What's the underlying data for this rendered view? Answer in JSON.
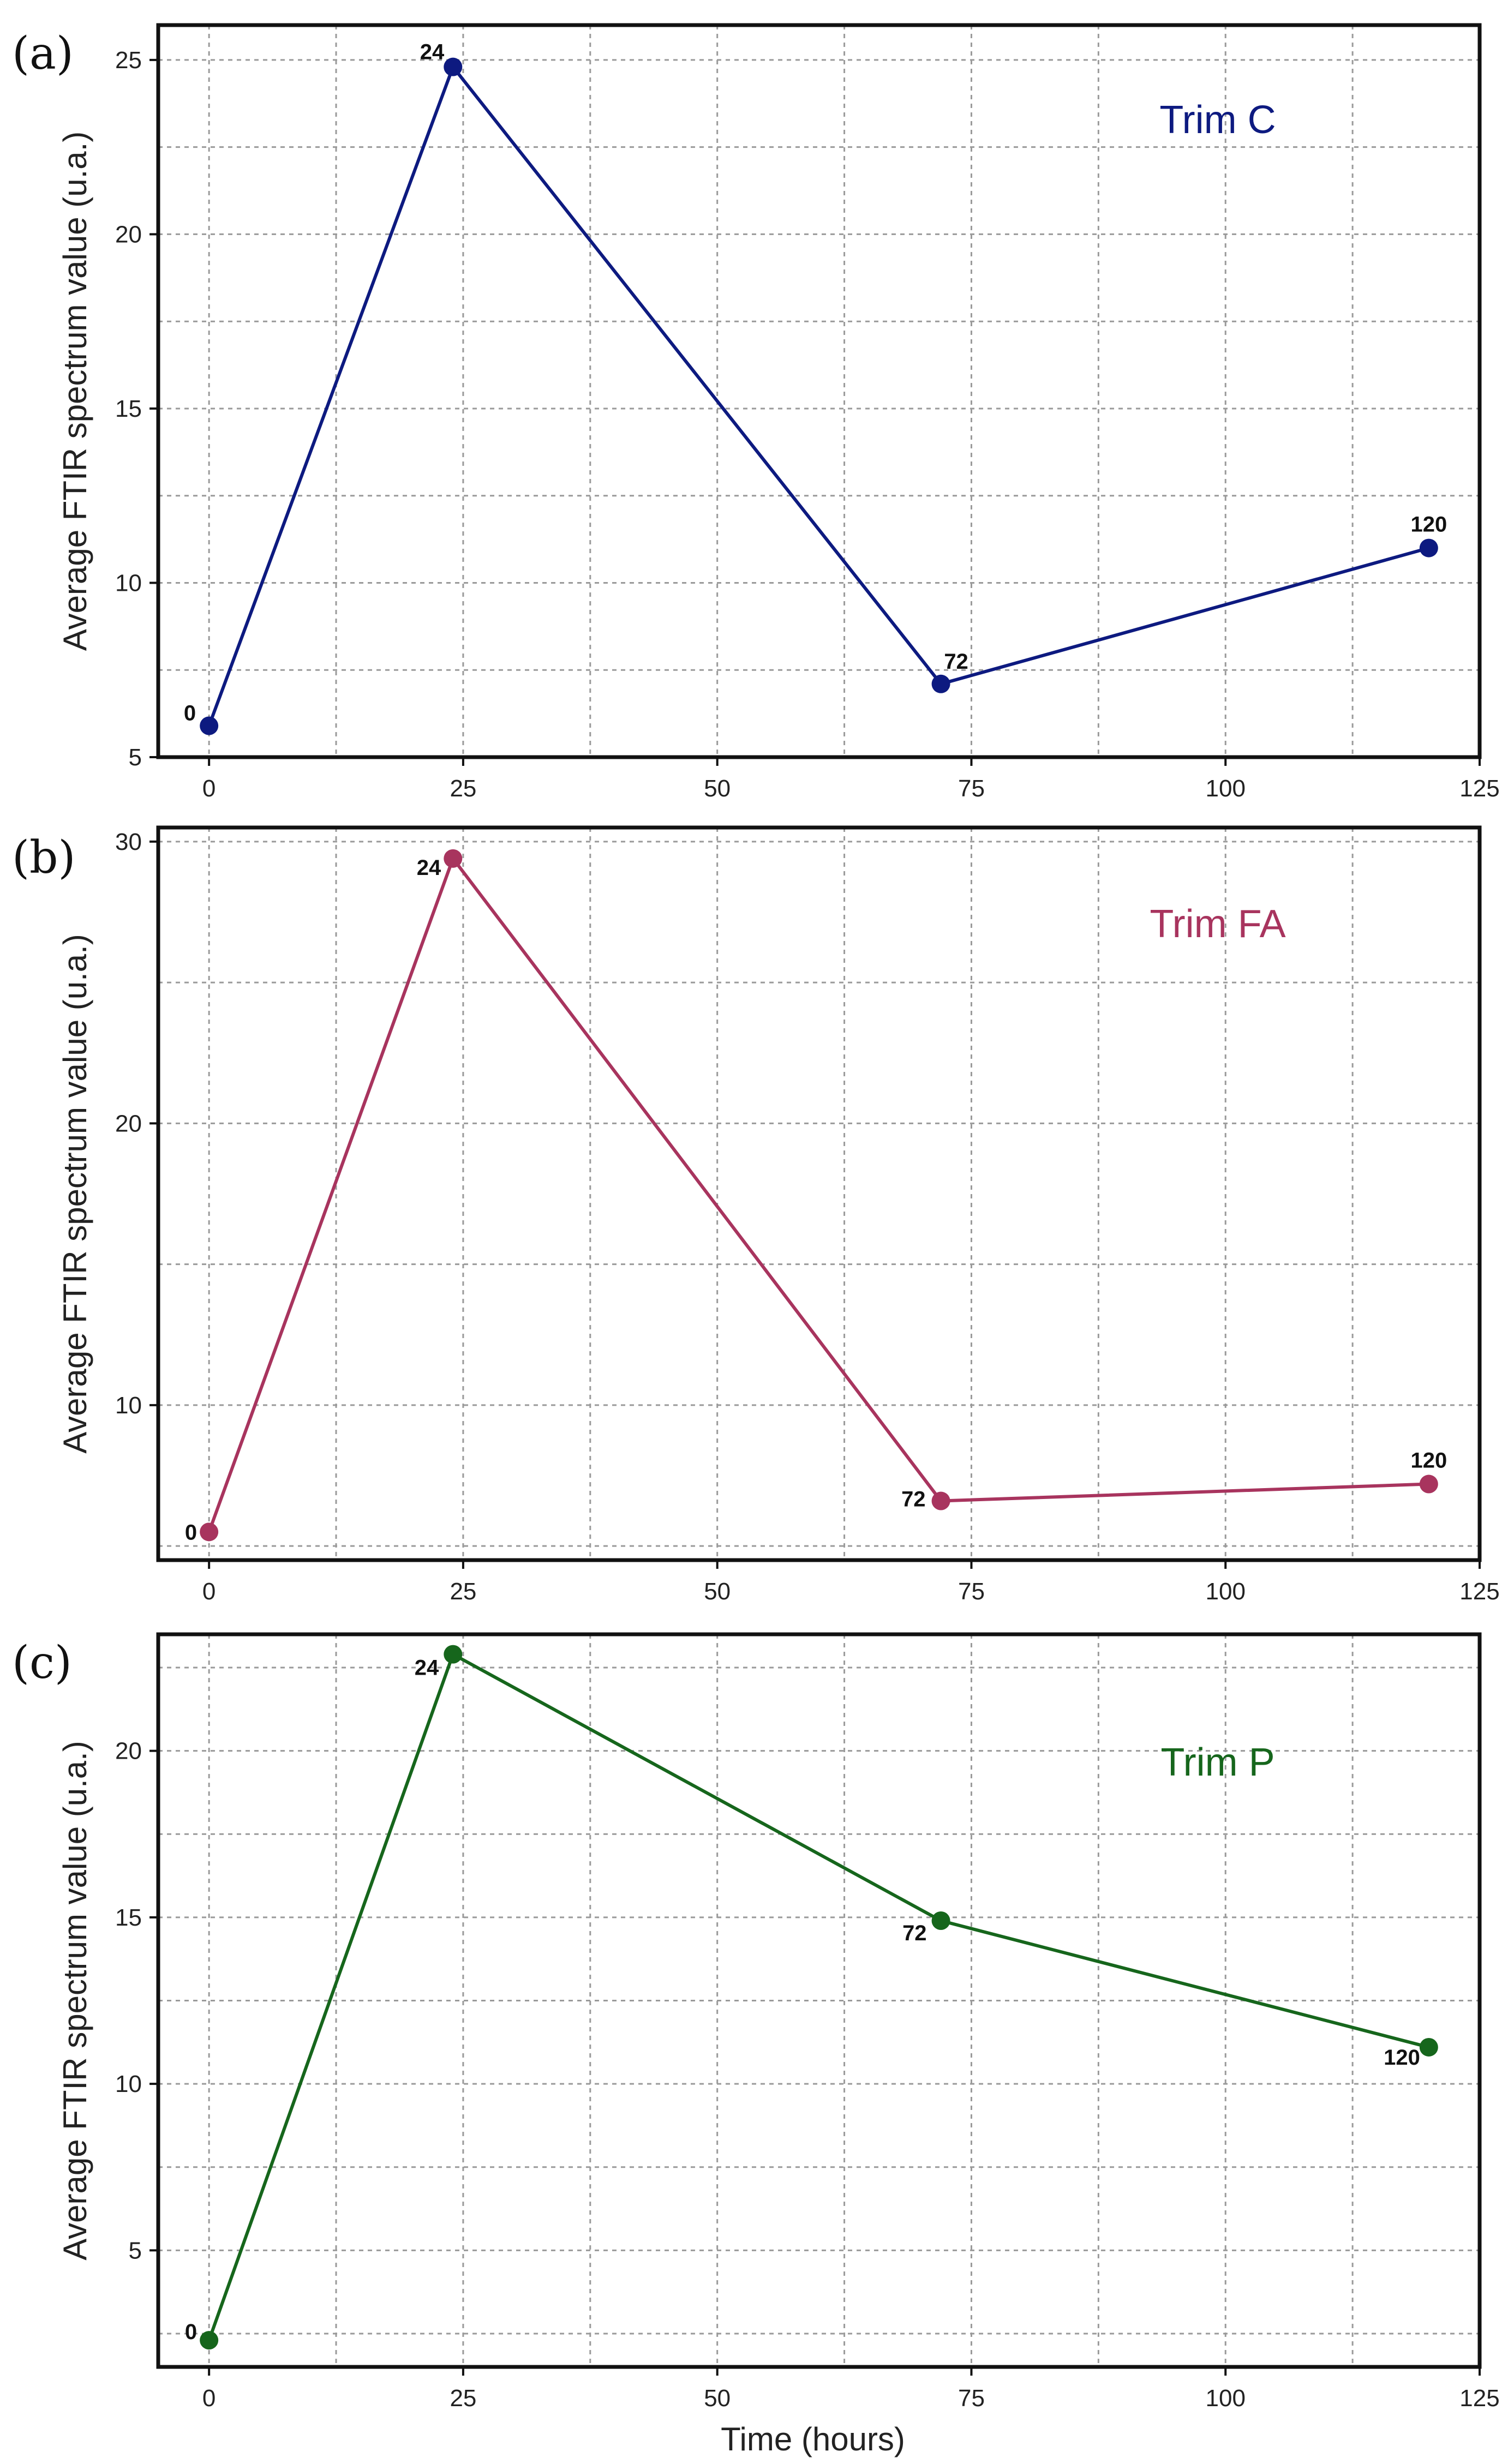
{
  "figure": {
    "xlabel": "Time (hours)"
  },
  "chart_data": [
    {
      "type": "line",
      "panel": "(a)",
      "series_name": "Trim C",
      "color": "#0d1a80",
      "x": [
        0,
        24,
        72,
        120
      ],
      "values": [
        5.9,
        24.8,
        7.1,
        11.0
      ],
      "point_labels": [
        "0",
        "24",
        "72",
        "120"
      ],
      "xlim": [
        -5,
        125
      ],
      "ylim": [
        5,
        26
      ],
      "xticks": [
        0,
        25,
        50,
        75,
        100,
        125
      ],
      "yticks": [
        5,
        10,
        15,
        20,
        25
      ],
      "xlabel": "",
      "ylabel": "Average FTIR spectrum value (u.a.)",
      "grid": true,
      "legend": "top-right"
    },
    {
      "type": "line",
      "panel": "(b)",
      "series_name": "Trim FA",
      "color": "#a8345e",
      "x": [
        0,
        24,
        72,
        120
      ],
      "values": [
        5.5,
        29.4,
        6.6,
        7.2
      ],
      "point_labels": [
        "0",
        "24",
        "72",
        "120"
      ],
      "xlim": [
        -5,
        125
      ],
      "ylim": [
        4.5,
        30.5
      ],
      "xticks": [
        0,
        25,
        50,
        75,
        100,
        125
      ],
      "yticks": [
        10,
        20,
        30
      ],
      "xlabel": "",
      "ylabel": "Average FTIR spectrum value (u.a.)",
      "grid": true,
      "legend": "top-right"
    },
    {
      "type": "line",
      "panel": "(c)",
      "series_name": "Trim P",
      "color": "#16661c",
      "x": [
        0,
        24,
        72,
        120
      ],
      "values": [
        2.3,
        22.9,
        14.9,
        11.1
      ],
      "point_labels": [
        "0",
        "24",
        "72",
        "120"
      ],
      "xlim": [
        -5,
        125
      ],
      "ylim": [
        1.5,
        23.5
      ],
      "xticks": [
        0,
        25,
        50,
        75,
        100,
        125
      ],
      "yticks": [
        5,
        10,
        15,
        20
      ],
      "xlabel": "Time (hours)",
      "ylabel": "Average FTIR spectrum value (u.a.)",
      "grid": true,
      "legend": "top-right"
    }
  ]
}
